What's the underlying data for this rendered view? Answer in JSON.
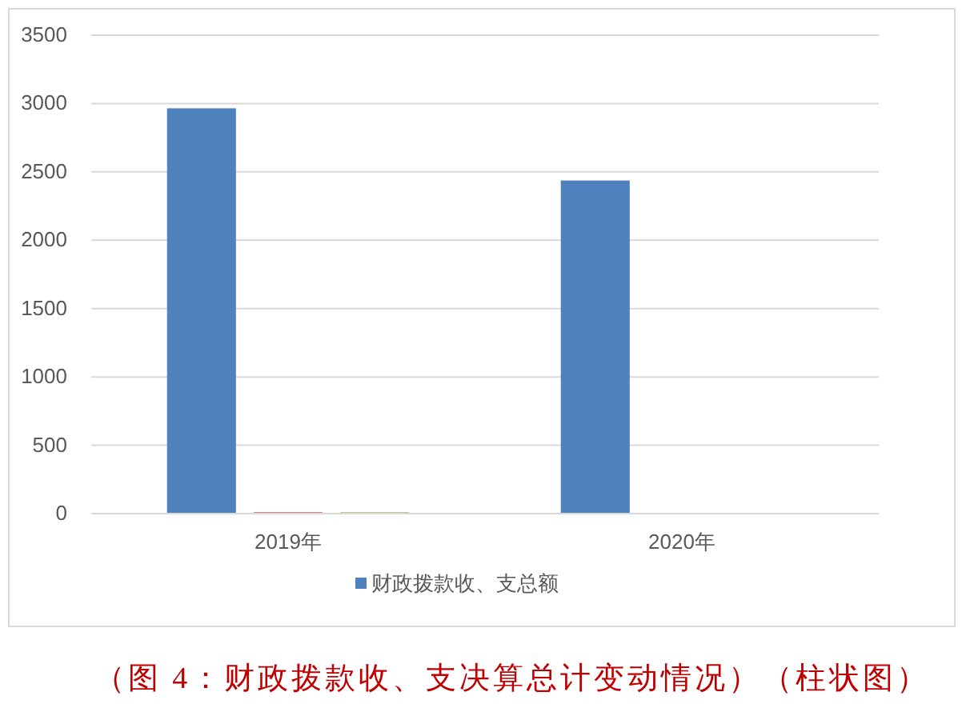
{
  "chart_data": {
    "type": "bar",
    "categories": [
      "2019年",
      "2020年"
    ],
    "series": [
      {
        "name": "财政拨款收、支总额",
        "color": "#4f81bd",
        "values": [
          2965,
          2437
        ]
      },
      {
        "color": "#c0504d",
        "values": [
          10,
          0
        ]
      },
      {
        "color": "#9bbb59",
        "values": [
          10,
          0
        ]
      }
    ],
    "ylim": [
      0,
      3500
    ],
    "yticks": [
      0,
      500,
      1000,
      1500,
      2000,
      2500,
      3000,
      3500
    ],
    "grid": "y",
    "legend": "bottom",
    "annotations": [
      "（图 4：财政拨款收、支决算总计变动情况）（柱状图）"
    ]
  }
}
